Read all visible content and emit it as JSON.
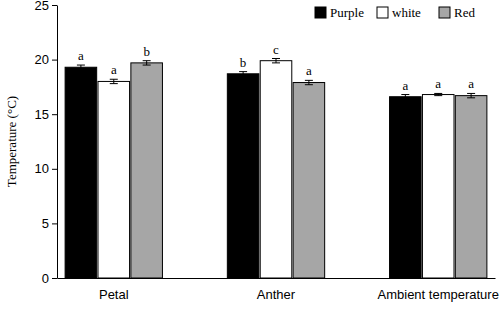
{
  "chart_data": {
    "type": "bar",
    "y_label": "Temperature (°C)",
    "categories": [
      "Petal",
      "Anther",
      "Ambient temperature"
    ],
    "series": [
      {
        "name": "Purple",
        "color": "#000000",
        "values": [
          19.3,
          18.7,
          16.6
        ],
        "errors": [
          0.2,
          0.2,
          0.2
        ],
        "letters": [
          "a",
          "b",
          "a"
        ]
      },
      {
        "name": "white",
        "color": "#ffffff",
        "values": [
          18.0,
          19.9,
          16.8
        ],
        "errors": [
          0.2,
          0.2,
          0.1
        ],
        "letters": [
          "a",
          "c",
          "a"
        ]
      },
      {
        "name": "Red",
        "color": "#a6a6a6",
        "values": [
          19.7,
          17.9,
          16.7
        ],
        "errors": [
          0.2,
          0.2,
          0.2
        ],
        "letters": [
          "b",
          "a",
          "a"
        ]
      }
    ],
    "ylim": [
      0,
      25
    ],
    "yticks": [
      0,
      5,
      10,
      15,
      20,
      25
    ],
    "grid": false,
    "legend": "top-right"
  }
}
